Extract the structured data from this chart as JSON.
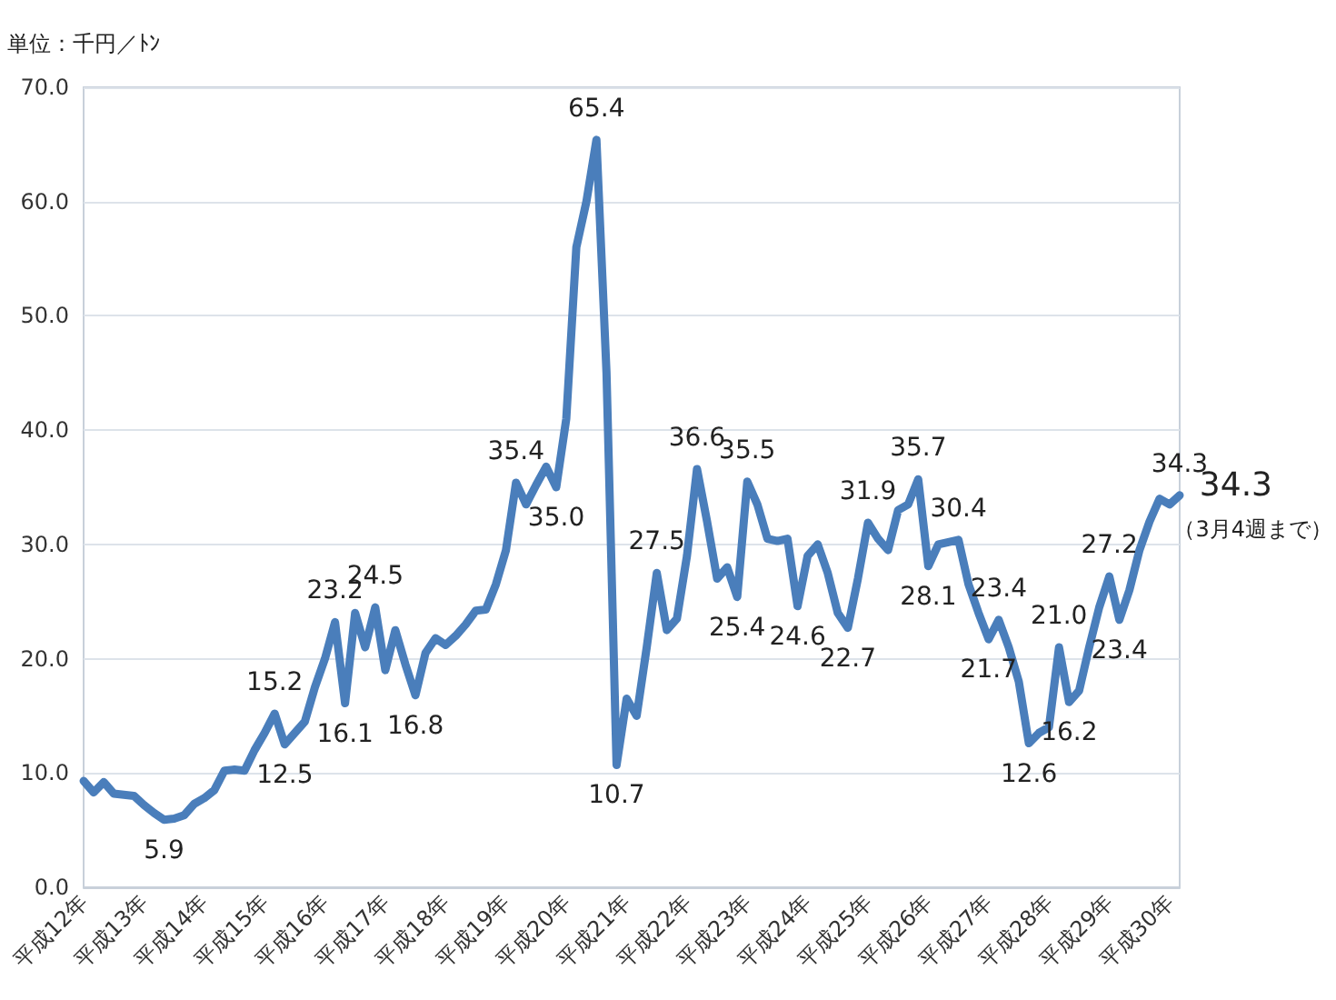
{
  "chart_data": {
    "type": "line",
    "ylabel": "単位：千円／ﾄﾝ",
    "categories": [
      "平成12年",
      null,
      null,
      null,
      null,
      null,
      "平成13年",
      null,
      null,
      null,
      null,
      null,
      "平成14年",
      null,
      null,
      null,
      null,
      null,
      "平成15年",
      null,
      null,
      null,
      null,
      null,
      "平成16年",
      null,
      null,
      null,
      null,
      null,
      "平成17年",
      null,
      null,
      null,
      null,
      null,
      "平成18年",
      null,
      null,
      null,
      null,
      null,
      "平成19年",
      null,
      null,
      null,
      null,
      null,
      "平成20年",
      null,
      null,
      null,
      null,
      null,
      "平成21年",
      null,
      null,
      null,
      null,
      null,
      "平成22年",
      null,
      null,
      null,
      null,
      null,
      "平成23年",
      null,
      null,
      null,
      null,
      null,
      "平成24年",
      null,
      null,
      null,
      null,
      null,
      "平成25年",
      null,
      null,
      null,
      null,
      null,
      "平成26年",
      null,
      null,
      null,
      null,
      null,
      "平成27年",
      null,
      null,
      null,
      null,
      null,
      "平成28年",
      null,
      null,
      null,
      null,
      null,
      "平成29年",
      null,
      null,
      null,
      null,
      null,
      "平成30年",
      null
    ],
    "series": [
      {
        "color": "#4a7ebb",
        "values": [
          9.3,
          8.3,
          9.2,
          8.2,
          8.1,
          8.0,
          7.2,
          6.5,
          5.9,
          6.0,
          6.3,
          7.3,
          7.8,
          8.5,
          10.2,
          10.3,
          10.2,
          12.0,
          13.5,
          15.2,
          12.5,
          13.5,
          14.5,
          17.5,
          20.0,
          23.2,
          16.1,
          24.0,
          21.0,
          24.5,
          19.0,
          22.5,
          19.5,
          16.8,
          20.5,
          21.8,
          21.2,
          22.0,
          23.0,
          24.2,
          24.3,
          26.5,
          29.5,
          35.4,
          33.5,
          35.2,
          36.8,
          35.0,
          41.0,
          56.0,
          60.0,
          65.4,
          45.0,
          10.7,
          16.5,
          15.0,
          21.0,
          27.5,
          22.5,
          23.5,
          29.0,
          36.6,
          32.0,
          27.0,
          28.0,
          25.4,
          35.5,
          33.5,
          30.5,
          30.3,
          30.5,
          24.6,
          29.0,
          30.0,
          27.5,
          24.0,
          22.7,
          27.0,
          31.9,
          30.5,
          29.5,
          33.0,
          33.5,
          35.7,
          28.1,
          30.0,
          30.2,
          30.4,
          26.5,
          24.0,
          21.7,
          23.4,
          21.0,
          18.0,
          12.6,
          13.5,
          14.0,
          21.0,
          16.2,
          17.2,
          21.0,
          24.5,
          27.2,
          23.4,
          26.0,
          29.5,
          32.0,
          34.0,
          33.5,
          34.3
        ],
        "value_labels": [
          null,
          null,
          null,
          null,
          null,
          null,
          null,
          null,
          "5.9",
          null,
          null,
          null,
          null,
          null,
          null,
          null,
          null,
          null,
          null,
          "15.2",
          "12.5",
          null,
          null,
          null,
          null,
          "23.2",
          "16.1",
          null,
          null,
          "24.5",
          null,
          null,
          null,
          "16.8",
          null,
          null,
          null,
          null,
          null,
          null,
          null,
          null,
          null,
          "35.4",
          null,
          null,
          null,
          "35.0",
          null,
          null,
          null,
          "65.4",
          null,
          "10.7",
          null,
          null,
          null,
          "27.5",
          null,
          null,
          null,
          "36.6",
          null,
          null,
          null,
          "25.4",
          "35.5",
          null,
          null,
          null,
          null,
          "24.6",
          null,
          null,
          null,
          null,
          "22.7",
          null,
          "31.9",
          null,
          null,
          null,
          null,
          "35.7",
          "28.1",
          null,
          null,
          "30.4",
          null,
          null,
          "21.7",
          "23.4",
          null,
          null,
          "12.6",
          null,
          null,
          "21.0",
          "16.2",
          null,
          null,
          null,
          "27.2",
          "23.4",
          null,
          null,
          null,
          null,
          null,
          "34.3"
        ]
      }
    ],
    "ylim": [
      0,
      70
    ],
    "yticks": [
      {
        "value": 0,
        "label": "0.0"
      },
      {
        "value": 10,
        "label": "10.0"
      },
      {
        "value": 20,
        "label": "20.0"
      },
      {
        "value": 30,
        "label": "30.0"
      },
      {
        "value": 40,
        "label": "40.0"
      },
      {
        "value": 50,
        "label": "50.0"
      },
      {
        "value": 60,
        "label": "60.0"
      },
      {
        "value": 70,
        "label": "70.0"
      }
    ],
    "annotations": [
      "34.3",
      "（3月4週まで）"
    ],
    "grid": "y",
    "marker": "none",
    "line_style": "solid"
  }
}
